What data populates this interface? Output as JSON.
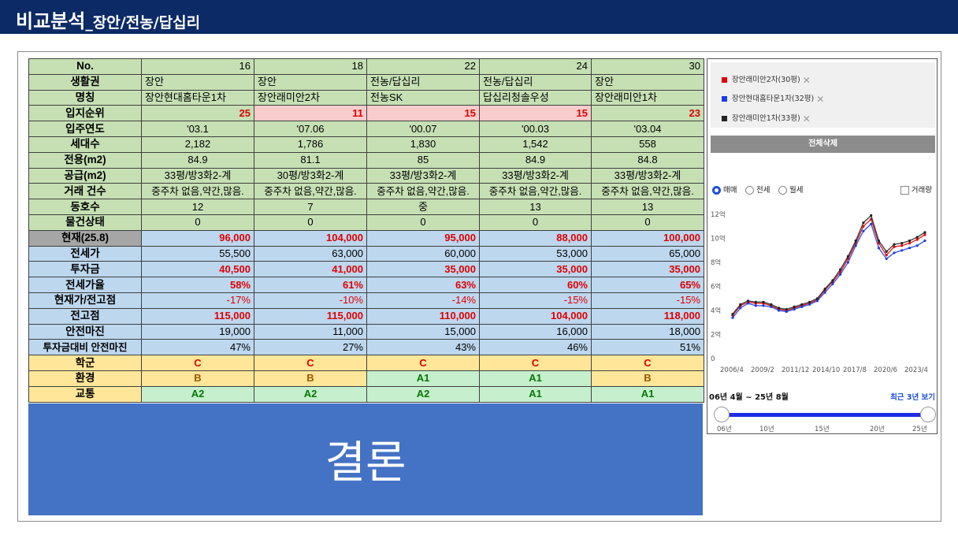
{
  "header": {
    "title": "비교분석",
    "subtitle": "_장안/전농/답십리"
  },
  "table": {
    "rows": [
      {
        "label": "No.",
        "cells": [
          "16",
          "18",
          "22",
          "24",
          "30"
        ]
      },
      {
        "label": "생활권",
        "cells": [
          "장안",
          "장안",
          "전농/답십리",
          "전농/답십리",
          "장안"
        ]
      },
      {
        "label": "명칭",
        "cells": [
          "장안현대홈타운1차",
          "장안래미안2차",
          "전농SK",
          "답십리청솔우성",
          "장안래미안1차"
        ]
      },
      {
        "label": "입지순위",
        "cells": [
          "25",
          "11",
          "15",
          "15",
          "23"
        ]
      },
      {
        "label": "입주연도",
        "cells": [
          "'03.1",
          "'07.06",
          "'00.07",
          "'00.03",
          "'03.04"
        ]
      },
      {
        "label": "세대수",
        "cells": [
          "2,182",
          "1,786",
          "1,830",
          "1,542",
          "558"
        ]
      },
      {
        "label": "전용(m2)",
        "cells": [
          "84.9",
          "81.1",
          "85",
          "84.9",
          "84.8"
        ]
      },
      {
        "label": "공급(m2)",
        "cells": [
          "33평/방3화2-계",
          "30평/방3화2-계",
          "33평/방3화2-계",
          "33평/방3화2-계",
          "33평/방3화2-계"
        ]
      },
      {
        "label": "거래 건수",
        "cells": [
          "중주차 없음,약간,많음.",
          "중주차 없음,약간,많음.",
          "중주차 없음,약간,많음.",
          "중주차 없음,약간,많음.",
          "중주차 없음,약간,많음."
        ]
      },
      {
        "label": "동호수",
        "cells": [
          "12",
          "7",
          "중",
          "13",
          "13"
        ]
      },
      {
        "label": "물건상태",
        "cells": [
          "0",
          "0",
          "0",
          "0",
          "0"
        ]
      },
      {
        "label": "현재(25.8)",
        "cells": [
          "96,000",
          "104,000",
          "95,000",
          "88,000",
          "100,000"
        ]
      },
      {
        "label": "전세가",
        "cells": [
          "55,500",
          "63,000",
          "60,000",
          "53,000",
          "65,000"
        ]
      },
      {
        "label": "투자금",
        "cells": [
          "40,500",
          "41,000",
          "35,000",
          "35,000",
          "35,000"
        ]
      },
      {
        "label": "전세가율",
        "cells": [
          "58%",
          "61%",
          "63%",
          "60%",
          "65%"
        ]
      },
      {
        "label": "현재가/전고점",
        "cells": [
          "-17%",
          "-10%",
          "-14%",
          "-15%",
          "-15%"
        ]
      },
      {
        "label": "전고점",
        "cells": [
          "115,000",
          "115,000",
          "110,000",
          "104,000",
          "118,000"
        ]
      },
      {
        "label": "안전마진",
        "cells": [
          "19,000",
          "11,000",
          "15,000",
          "16,000",
          "18,000"
        ]
      },
      {
        "label": "투자금대비 안전마진",
        "cells": [
          "47%",
          "27%",
          "43%",
          "46%",
          "51%"
        ]
      },
      {
        "label": "학군",
        "cells": [
          "C",
          "C",
          "C",
          "C",
          "C"
        ]
      },
      {
        "label": "환경",
        "cells": [
          "B",
          "B",
          "A1",
          "A1",
          "B"
        ]
      },
      {
        "label": "교통",
        "cells": [
          "A2",
          "A2",
          "A2",
          "A1",
          "A1"
        ]
      }
    ]
  },
  "conclusion": {
    "text": "결론"
  },
  "panel": {
    "legend": [
      {
        "name": "장안래미안2차(30평)",
        "color": "#e00000"
      },
      {
        "name": "장안현대홈타운1차(32평)",
        "color": "#1e3ce0"
      },
      {
        "name": "장안래미안1차(33평)",
        "color": "#222222"
      }
    ],
    "delete_all": "전체삭제",
    "trade_types": [
      "매매",
      "전세",
      "월세"
    ],
    "selected_trade": "매매",
    "volume_label": "거래량",
    "range_label": "06년 4월 ~ 25년 8월",
    "recent_label": "최근 3년 보기",
    "slider_ticks": [
      "06년",
      "10년",
      "15년",
      "20년",
      "25년"
    ]
  },
  "chart_data": {
    "type": "line",
    "x_tick_labels": [
      "2006/4",
      "2009/2",
      "2011/12",
      "2014/10",
      "2017/8",
      "2020/6",
      "2023/4"
    ],
    "y_tick_labels": [
      "0",
      "2억",
      "4억",
      "6억",
      "8억",
      "10억",
      "12억"
    ],
    "ylim": [
      0,
      12
    ],
    "x": [
      "2006/4",
      "2007/4",
      "2008/4",
      "2009/4",
      "2010/4",
      "2011/4",
      "2012/4",
      "2013/4",
      "2014/4",
      "2015/4",
      "2016/4",
      "2017/4",
      "2018/4",
      "2019/4",
      "2020/4",
      "2020/10",
      "2021/4",
      "2021/10",
      "2022/4",
      "2022/10",
      "2023/4",
      "2023/10",
      "2024/4",
      "2024/10",
      "2025/4",
      "2025/8"
    ],
    "series": [
      {
        "name": "장안래미안2차(30평)",
        "color": "#e00000",
        "values": [
          3.6,
          4.4,
          4.7,
          4.6,
          4.6,
          4.4,
          4.1,
          4.0,
          4.2,
          4.4,
          4.6,
          4.9,
          5.7,
          6.4,
          7.2,
          8.3,
          9.6,
          11.0,
          11.6,
          9.6,
          8.6,
          9.3,
          9.4,
          9.6,
          9.9,
          10.3
        ]
      },
      {
        "name": "장안현대홈타운1차(32평)",
        "color": "#1e3ce0",
        "values": [
          3.4,
          4.2,
          4.6,
          4.4,
          4.4,
          4.3,
          4.0,
          3.9,
          4.1,
          4.3,
          4.5,
          4.8,
          5.5,
          6.2,
          7.0,
          8.0,
          9.4,
          10.6,
          11.2,
          9.2,
          8.3,
          8.8,
          9.0,
          9.2,
          9.4,
          9.8
        ]
      },
      {
        "name": "장안래미안1차(33평)",
        "color": "#222222",
        "values": [
          3.7,
          4.5,
          4.8,
          4.7,
          4.7,
          4.5,
          4.2,
          4.1,
          4.3,
          4.5,
          4.7,
          5.0,
          5.8,
          6.5,
          7.4,
          8.5,
          9.8,
          11.3,
          11.9,
          9.8,
          8.9,
          9.5,
          9.6,
          9.8,
          10.1,
          10.5
        ]
      }
    ]
  }
}
